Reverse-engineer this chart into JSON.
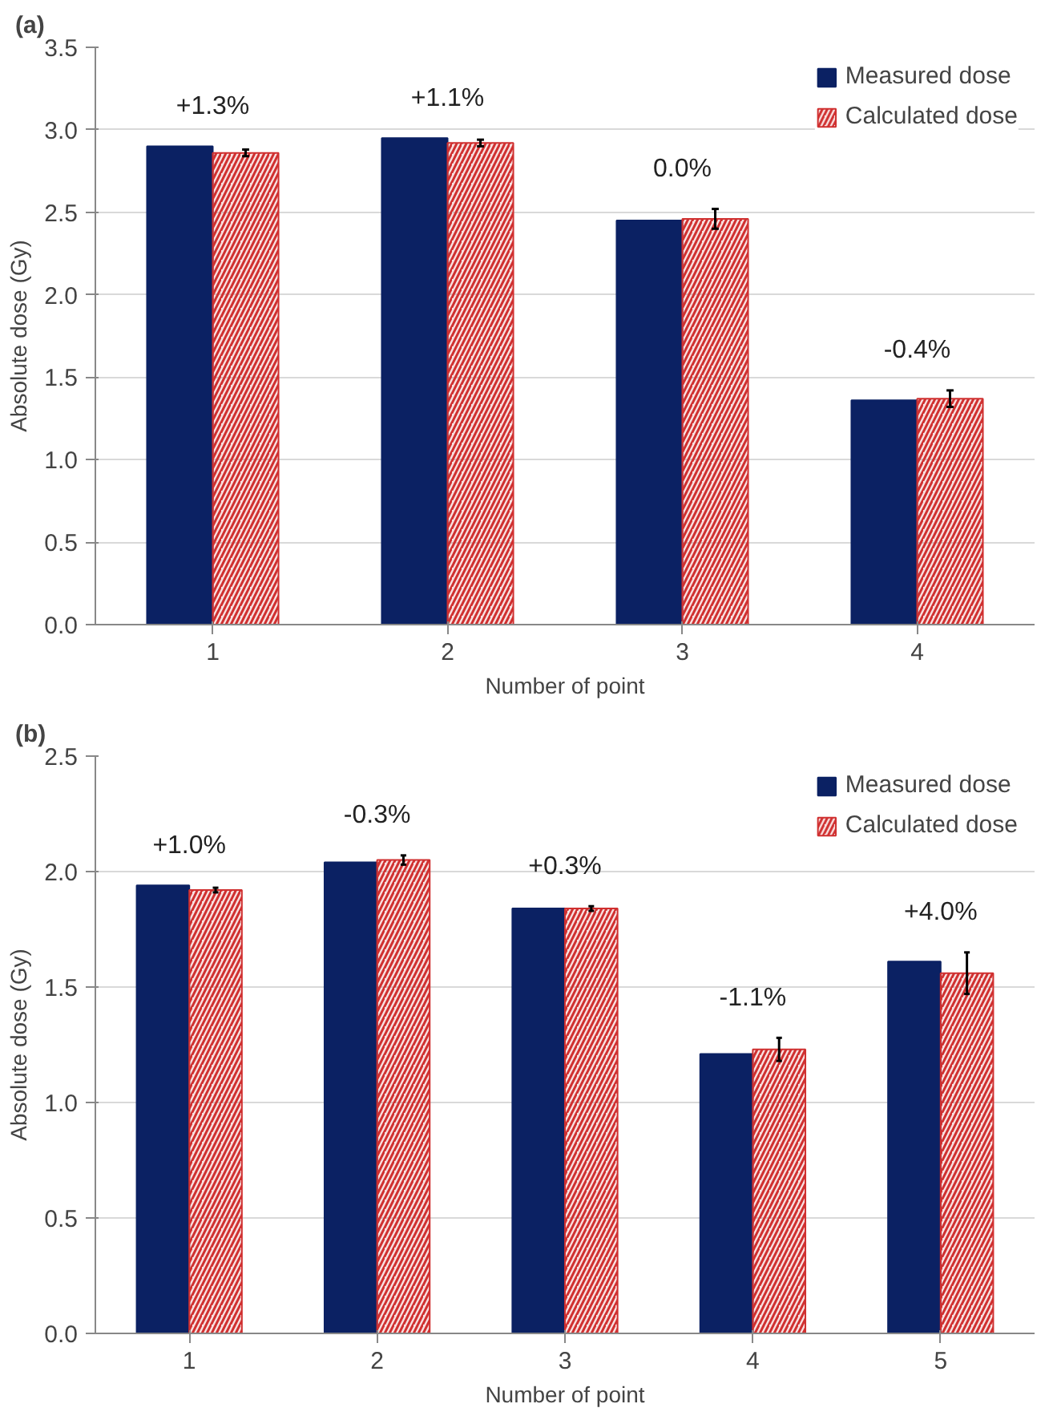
{
  "chart_data": [
    {
      "type": "bar",
      "title": "(a)",
      "xlabel": "Number of point",
      "ylabel": "Absolute dose (Gy)",
      "categories": [
        "1",
        "2",
        "3",
        "4"
      ],
      "series": [
        {
          "name": "Measured dose",
          "color": "#0b2163",
          "values": [
            2.9,
            2.95,
            2.45,
            1.36
          ]
        },
        {
          "name": "Calculated dose",
          "color": "#d03030",
          "values": [
            2.86,
            2.92,
            2.46,
            1.37
          ],
          "errors": [
            0.02,
            0.02,
            0.06,
            0.05
          ]
        }
      ],
      "ylim": [
        0,
        3.5
      ],
      "yticks": [
        {
          "value": 0,
          "label": "0.0"
        },
        0.5,
        {
          "value": 1,
          "label": "1.0"
        },
        1.5,
        {
          "value": 2,
          "label": "2.0"
        },
        2.5,
        {
          "value": 3,
          "label": "3.0"
        },
        3.5
      ],
      "grid": "y",
      "legend": "top right",
      "annotations": [
        "+1.3%",
        "+1.1%",
        "0.0%",
        "-0.4%"
      ]
    },
    {
      "type": "bar",
      "title": "(b)",
      "xlabel": "Number of point",
      "ylabel": "Absolute dose (Gy)",
      "categories": [
        "1",
        "2",
        "3",
        "4",
        "5"
      ],
      "series": [
        {
          "name": "Measured dose",
          "color": "#0b2163",
          "values": [
            1.94,
            2.04,
            1.84,
            1.21,
            1.61
          ]
        },
        {
          "name": "Calculated dose",
          "color": "#d03030",
          "values": [
            1.92,
            2.05,
            1.84,
            1.23,
            1.56
          ],
          "errors": [
            0.01,
            0.02,
            0.01,
            0.05,
            0.09
          ]
        }
      ],
      "ylim": [
        0,
        2.5
      ],
      "yticks": [
        {
          "value": 0,
          "label": "0.0"
        },
        0.5,
        {
          "value": 1,
          "label": "1.0"
        },
        1.5,
        {
          "value": 2,
          "label": "2.0"
        },
        2.5
      ],
      "grid": "y",
      "legend": "top right",
      "annotations": [
        "+1.0%",
        "-0.3%",
        "+0.3%",
        "-1.1%",
        "+4.0%"
      ]
    }
  ]
}
